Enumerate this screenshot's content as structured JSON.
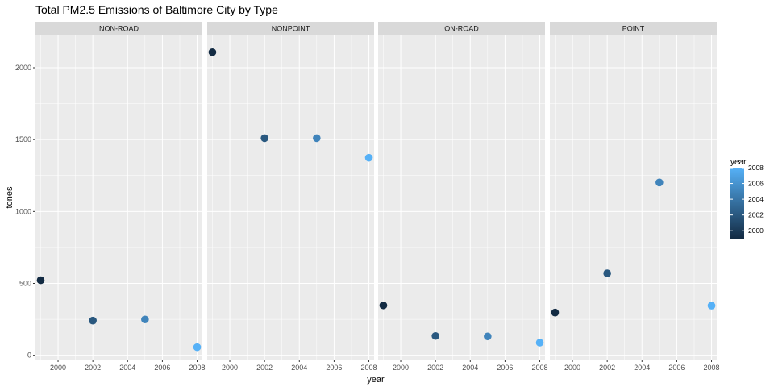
{
  "chart_data": {
    "type": "scatter",
    "title": "Total PM2.5 Emissions of Baltimore City by Type",
    "xlabel": "year",
    "ylabel": "tones",
    "x_ticks": [
      2000,
      2002,
      2004,
      2006,
      2008
    ],
    "y_ticks": [
      0,
      500,
      1000,
      1500,
      2000
    ],
    "xlim": [
      1998.7,
      2008.3
    ],
    "ylim": [
      -30,
      2230
    ],
    "facets": [
      {
        "name": "NON-ROAD",
        "points": [
          {
            "x": 1999,
            "y": 522
          },
          {
            "x": 2002,
            "y": 241
          },
          {
            "x": 2005,
            "y": 249
          },
          {
            "x": 2008,
            "y": 56
          }
        ]
      },
      {
        "name": "NONPOINT",
        "points": [
          {
            "x": 1999,
            "y": 2108
          },
          {
            "x": 2002,
            "y": 1510
          },
          {
            "x": 2005,
            "y": 1510
          },
          {
            "x": 2008,
            "y": 1374
          }
        ]
      },
      {
        "name": "ON-ROAD",
        "points": [
          {
            "x": 1999,
            "y": 347
          },
          {
            "x": 2002,
            "y": 134
          },
          {
            "x": 2005,
            "y": 131
          },
          {
            "x": 2008,
            "y": 88
          }
        ]
      },
      {
        "name": "POINT",
        "points": [
          {
            "x": 1999,
            "y": 297
          },
          {
            "x": 2002,
            "y": 570
          },
          {
            "x": 2005,
            "y": 1202
          },
          {
            "x": 2008,
            "y": 345
          }
        ]
      }
    ],
    "legend": {
      "title": "year",
      "position": "right",
      "labels": [
        2008,
        2006,
        2004,
        2002,
        2000
      ],
      "range": [
        1999,
        2008
      ],
      "color_low": "#132B43",
      "color_high": "#56B1F7"
    },
    "colors": {
      "panel_background": "#ebebeb",
      "strip_background": "#d9d9d9",
      "grid_major": "#ffffff"
    },
    "grid": true
  }
}
